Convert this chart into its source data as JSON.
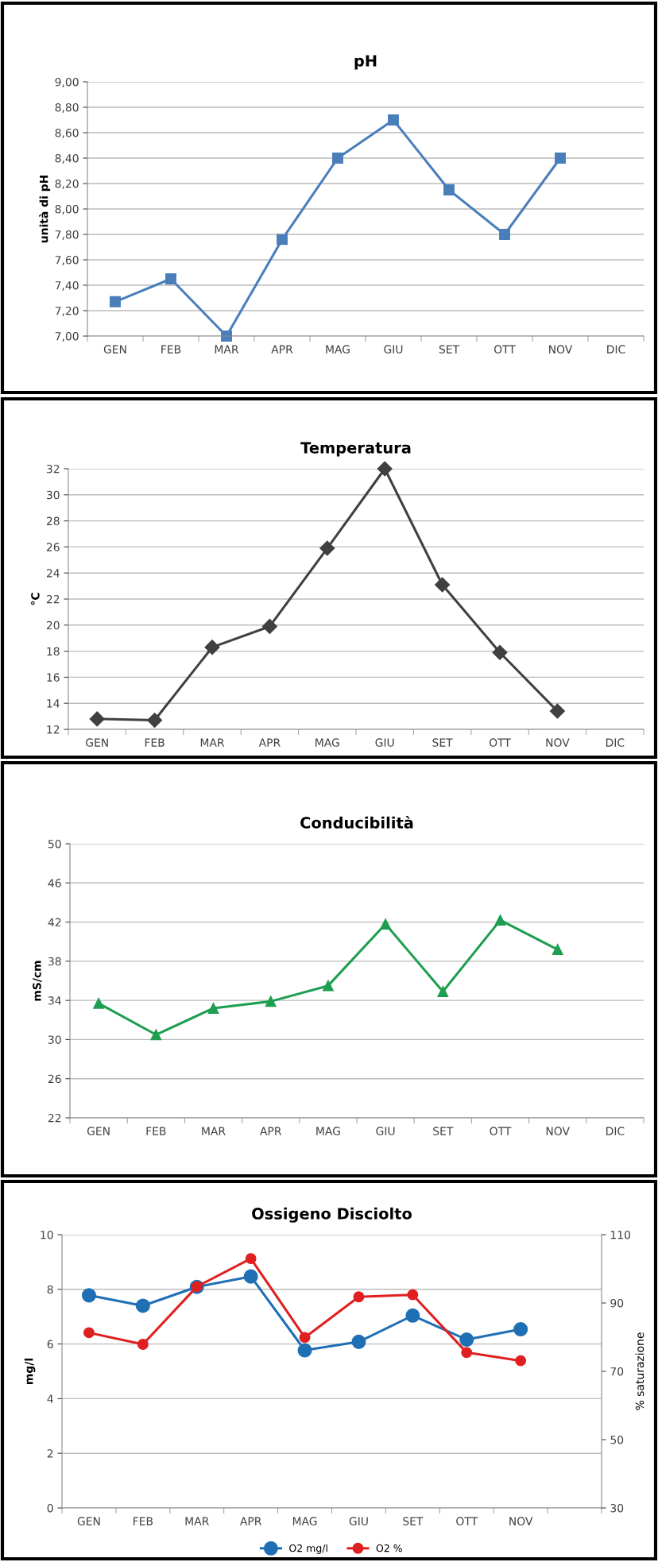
{
  "chart_data": [
    {
      "type": "line",
      "title": "pH",
      "ylabel": "unità di pH",
      "categories": [
        "GEN",
        "FEB",
        "MAR",
        "APR",
        "MAG",
        "GIU",
        "SET",
        "OTT",
        "NOV",
        "DIC"
      ],
      "series": [
        {
          "color": "#4a7ebb",
          "values": [
            7.27,
            7.45,
            7.0,
            7.76,
            8.4,
            8.7,
            8.15,
            7.8,
            8.4,
            null
          ]
        }
      ],
      "ylim": [
        7.0,
        9.0
      ],
      "yticks": [
        {
          "value": 7.0,
          "label": "7,00"
        },
        {
          "value": 7.2,
          "label": "7,20"
        },
        {
          "value": 7.4,
          "label": "7,40"
        },
        {
          "value": 7.6,
          "label": "7,60"
        },
        {
          "value": 7.8,
          "label": "7,80"
        },
        {
          "value": 8.0,
          "label": "8,00"
        },
        {
          "value": 8.2,
          "label": "8,20"
        },
        {
          "value": 8.4,
          "label": "8,40"
        },
        {
          "value": 8.6,
          "label": "8,60"
        },
        {
          "value": 8.8,
          "label": "8,80"
        },
        {
          "value": 9.0,
          "label": "9,00"
        }
      ],
      "grid": "y",
      "marker": "square",
      "line_style": "solid"
    },
    {
      "type": "line",
      "title": "Temperatura",
      "ylabel": "°C",
      "categories": [
        "GEN",
        "FEB",
        "MAR",
        "APR",
        "MAG",
        "GIU",
        "SET",
        "OTT",
        "NOV",
        "DIC"
      ],
      "series": [
        {
          "color": "#404040",
          "values": [
            12.8,
            12.7,
            18.3,
            19.9,
            25.9,
            32.0,
            23.1,
            17.9,
            13.4,
            null
          ]
        }
      ],
      "ylim": [
        12,
        32
      ],
      "yticks": [
        12,
        14,
        16,
        18,
        20,
        22,
        24,
        26,
        28,
        30,
        32
      ],
      "grid": "y",
      "marker": "diamond",
      "line_style": "solid"
    },
    {
      "type": "line",
      "title": "Conducibilità",
      "ylabel": "mS/cm",
      "categories": [
        "GEN",
        "FEB",
        "MAR",
        "APR",
        "MAG",
        "GIU",
        "SET",
        "OTT",
        "NOV",
        "DIC"
      ],
      "series": [
        {
          "color": "#1e9e50",
          "values": [
            33.7,
            30.5,
            33.2,
            33.9,
            35.5,
            41.8,
            34.9,
            42.2,
            39.2,
            null
          ]
        }
      ],
      "ylim": [
        22,
        50
      ],
      "yticks": [
        22,
        26,
        30,
        34,
        38,
        42,
        46,
        50
      ],
      "grid": "y",
      "marker": "triangle",
      "line_style": "solid"
    },
    {
      "type": "line",
      "title": "Ossigeno Disciolto",
      "ylabel": "mg/l",
      "y2label": "% saturazione",
      "categories": [
        "GEN",
        "FEB",
        "MAR",
        "APR",
        "MAG",
        "GIU",
        "SET",
        "OTT",
        "NOV",
        null
      ],
      "series": [
        {
          "name": "O2 mg/l",
          "color": "#1f6fb5",
          "values": [
            7.78,
            7.4,
            8.09,
            8.47,
            5.77,
            6.08,
            7.04,
            6.16,
            6.54,
            null
          ]
        },
        {
          "name": "O2 %",
          "color": "#e02020",
          "axis": "y2",
          "values": [
            81.3,
            77.9,
            94.8,
            103.0,
            79.9,
            91.8,
            92.4,
            75.5,
            73.1,
            null
          ]
        }
      ],
      "ylim": [
        0,
        10
      ],
      "yticks": [
        0,
        2,
        4,
        6,
        8,
        10
      ],
      "y2lim": [
        30,
        110
      ],
      "y2ticks": [
        30,
        50,
        70,
        90,
        110
      ],
      "grid": "y",
      "legend": "bottom",
      "marker": "circle",
      "line_style": "solid"
    }
  ]
}
